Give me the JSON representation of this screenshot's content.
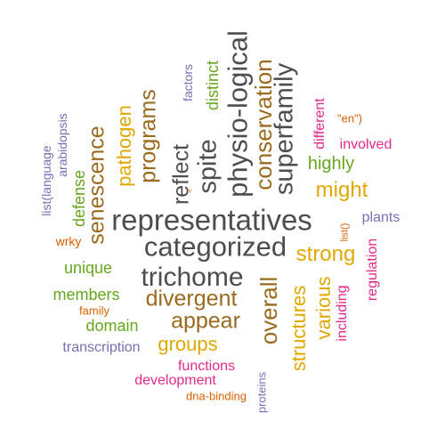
{
  "palette": {
    "dark_gray": "#4d4d4d",
    "brown": "#9a6a1f",
    "gold": "#e0a800",
    "green": "#66a61e",
    "magenta": "#e7298a",
    "slate_blue": "#7570b3",
    "orange": "#d95f02"
  },
  "words": [
    {
      "text": "representatives",
      "color": "#4d4d4d"
    },
    {
      "text": "categorized",
      "color": "#4d4d4d"
    },
    {
      "text": "trichome",
      "color": "#4d4d4d"
    },
    {
      "text": "physio-logical",
      "color": "#4d4d4d"
    },
    {
      "text": "superfamily",
      "color": "#4d4d4d"
    },
    {
      "text": "spite",
      "color": "#4d4d4d"
    },
    {
      "text": "reflect",
      "color": "#4d4d4d"
    },
    {
      "text": "conservation",
      "color": "#9a6a1f"
    },
    {
      "text": "programs",
      "color": "#9a6a1f"
    },
    {
      "text": "senescence",
      "color": "#9a6a1f"
    },
    {
      "text": "divergent",
      "color": "#9a6a1f"
    },
    {
      "text": "appear",
      "color": "#9a6a1f"
    },
    {
      "text": "overall",
      "color": "#9a6a1f"
    },
    {
      "text": "pathogen",
      "color": "#e0a800"
    },
    {
      "text": "might",
      "color": "#e0a800"
    },
    {
      "text": "strong",
      "color": "#e0a800"
    },
    {
      "text": "structures",
      "color": "#e0a800"
    },
    {
      "text": "various",
      "color": "#e0a800"
    },
    {
      "text": "groups",
      "color": "#e0a800"
    },
    {
      "text": "highly",
      "color": "#66a61e"
    },
    {
      "text": "distinct",
      "color": "#66a61e"
    },
    {
      "text": "defense",
      "color": "#66a61e"
    },
    {
      "text": "unique",
      "color": "#66a61e"
    },
    {
      "text": "members",
      "color": "#66a61e"
    },
    {
      "text": "domain",
      "color": "#66a61e"
    },
    {
      "text": "different",
      "color": "#e7298a"
    },
    {
      "text": "involved",
      "color": "#e7298a"
    },
    {
      "text": "regulation",
      "color": "#e7298a"
    },
    {
      "text": "including",
      "color": "#e7298a"
    },
    {
      "text": "functions",
      "color": "#e7298a"
    },
    {
      "text": "development",
      "color": "#e7298a"
    },
    {
      "text": "factors",
      "color": "#7570b3"
    },
    {
      "text": "plants",
      "color": "#7570b3"
    },
    {
      "text": "transcription",
      "color": "#7570b3"
    },
    {
      "text": "proteins",
      "color": "#7570b3"
    },
    {
      "text": "arabidopsis",
      "color": "#7570b3"
    },
    {
      "text": "list(language",
      "color": "#7570b3"
    },
    {
      "text": "\"en\")",
      "color": "#d95f02"
    },
    {
      "text": "list()",
      "color": "#d95f02"
    },
    {
      "text": "wrky",
      "color": "#d95f02"
    },
    {
      "text": "family",
      "color": "#d95f02"
    },
    {
      "text": "dna-binding",
      "color": "#d95f02"
    },
    {
      "text": "=",
      "color": "#d95f02"
    }
  ]
}
